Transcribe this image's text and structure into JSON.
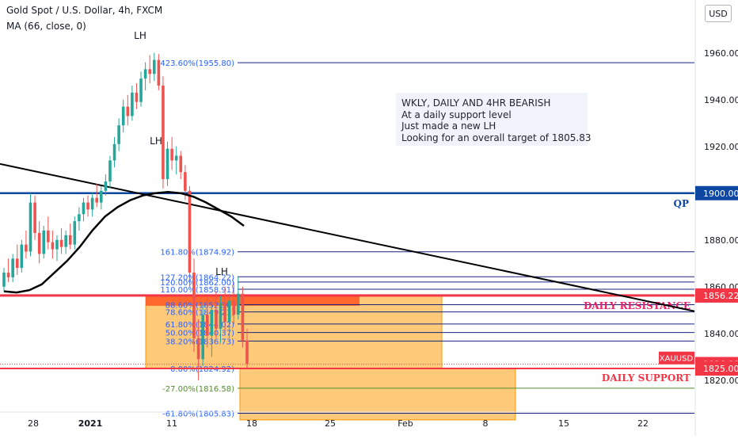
{
  "header": {
    "title": "Gold Spot / U.S. Dollar, 4h, FXCM",
    "indicator": "MA (66, close, 0)",
    "currency_button": "USD"
  },
  "colors": {
    "up_candle": "#26a69a",
    "down_candle": "#ef5350",
    "fib_line": "#1a237e",
    "fib_text": "#2962ff",
    "resistance": "#f23645",
    "support": "#f23645",
    "qp_line": "#0d47a1",
    "zone_fill": "#ffb74d",
    "ma_line": "#000000",
    "trend_line": "#000000",
    "price_tag_blue": "#0d47a1",
    "price_tag_red": "#f23645"
  },
  "note": {
    "lines": [
      "WKLY, DAILY AND 4HR BEARISH",
      "At a daily support level",
      "Just made a new LH",
      "Looking for an overall target of 1805.83"
    ]
  },
  "chart_data": {
    "type": "candlestick",
    "title": "Gold Spot / U.S. Dollar, 4h, FXCM",
    "y_axis": {
      "ticks": [
        1960,
        1940,
        1920,
        1900,
        1880,
        1860,
        1840,
        1820
      ],
      "tick_labels": [
        "1960.00",
        "1940.00",
        "1920.00",
        "1900.00",
        "1880.00",
        "1860.00",
        "1840.00",
        "1820.00"
      ],
      "range": [
        1796,
        1968
      ]
    },
    "x_axis": {
      "tick_labels": [
        "28",
        "2021",
        "11",
        "18",
        "25",
        "Feb",
        "8",
        "15",
        "22"
      ]
    },
    "price_tags": [
      {
        "label": "1900.00",
        "value": 1900.0,
        "kind": "blue"
      },
      {
        "label": "1856.22",
        "value": 1856.22,
        "kind": "red"
      },
      {
        "label": "XAUUSD",
        "value": 1829.5,
        "kind": "red-symbol"
      },
      {
        "label": "1826.88",
        "value": 1826.88,
        "kind": "red"
      },
      {
        "label": "1825.00",
        "value": 1825.0,
        "kind": "red"
      }
    ],
    "horizontal_levels": [
      {
        "label": "QP",
        "value": 1900.0
      },
      {
        "label": "DAILY RESISTANCE",
        "value": 1856.22
      },
      {
        "label": "DAILY SUPPORT",
        "value": 1825.0
      }
    ],
    "fib_levels": [
      {
        "label": "423.60%(1955.80)",
        "value": 1955.8
      },
      {
        "label": "161.80%(1874.92)",
        "value": 1874.92
      },
      {
        "label": "127.20%(1864.22)",
        "value": 1864.22
      },
      {
        "label": "120.00%(1862.00)",
        "value": 1862.0
      },
      {
        "label": "110.00%(1858.91)",
        "value": 1858.91
      },
      {
        "label": "88.60%(1852.30)",
        "value": 1852.3
      },
      {
        "label": "78.60%(1849.21)",
        "value": 1849.21
      },
      {
        "label": "61.80%(1844.02)",
        "value": 1844.02
      },
      {
        "label": "50.00%(1840.37)",
        "value": 1840.37
      },
      {
        "label": "38.20%(1836.73)",
        "value": 1836.73
      },
      {
        "label": "0.00%(1824.92)",
        "value": 1824.92
      },
      {
        "label": "-27.00%(1816.58)",
        "value": 1816.58
      },
      {
        "label": "-61.80%(1805.83)",
        "value": 1805.83
      }
    ],
    "annotations": [
      {
        "text": "LH",
        "x": 0.0,
        "y": 1966.0
      },
      {
        "text": "LH",
        "x": 0.0,
        "y": 1921.0
      },
      {
        "text": "LH",
        "x": 0.0,
        "y": 1865.0
      }
    ],
    "zones": [
      {
        "kind": "resistance-zone",
        "top": 1856.22,
        "bottom": 1825.0
      },
      {
        "kind": "projection-zone",
        "top": 1825.0,
        "bottom": 1803.0
      }
    ],
    "moving_average": {
      "name": "MA (66, close, 0)",
      "points": [
        [
          0,
          1858
        ],
        [
          10,
          1857.5
        ],
        [
          20,
          1858.5
        ],
        [
          30,
          1861
        ],
        [
          40,
          1866
        ],
        [
          50,
          1871
        ],
        [
          60,
          1877
        ],
        [
          70,
          1884
        ],
        [
          80,
          1890
        ],
        [
          90,
          1894
        ],
        [
          100,
          1897
        ],
        [
          110,
          1899
        ],
        [
          120,
          1900
        ],
        [
          130,
          1900.5
        ],
        [
          140,
          1900
        ],
        [
          150,
          1898.5
        ],
        [
          160,
          1896
        ],
        [
          170,
          1893
        ],
        [
          180,
          1890
        ],
        [
          190,
          1886
        ]
      ]
    },
    "trend_line": {
      "start": 1912.5,
      "end": 1849.5
    },
    "candles": [
      {
        "o": 1860,
        "h": 1868,
        "l": 1858,
        "c": 1866
      },
      {
        "o": 1866,
        "h": 1872,
        "l": 1862,
        "c": 1864
      },
      {
        "o": 1864,
        "h": 1874,
        "l": 1862,
        "c": 1872
      },
      {
        "o": 1872,
        "h": 1878,
        "l": 1865,
        "c": 1868
      },
      {
        "o": 1868,
        "h": 1880,
        "l": 1866,
        "c": 1878
      },
      {
        "o": 1878,
        "h": 1884,
        "l": 1872,
        "c": 1875
      },
      {
        "o": 1875,
        "h": 1900,
        "l": 1873,
        "c": 1896
      },
      {
        "o": 1896,
        "h": 1899,
        "l": 1880,
        "c": 1883
      },
      {
        "o": 1883,
        "h": 1888,
        "l": 1870,
        "c": 1874
      },
      {
        "o": 1874,
        "h": 1886,
        "l": 1872,
        "c": 1884
      },
      {
        "o": 1884,
        "h": 1890,
        "l": 1876,
        "c": 1879
      },
      {
        "o": 1879,
        "h": 1884,
        "l": 1872,
        "c": 1876
      },
      {
        "o": 1876,
        "h": 1882,
        "l": 1871,
        "c": 1880
      },
      {
        "o": 1880,
        "h": 1885,
        "l": 1874,
        "c": 1877
      },
      {
        "o": 1877,
        "h": 1884,
        "l": 1874,
        "c": 1882
      },
      {
        "o": 1882,
        "h": 1887,
        "l": 1876,
        "c": 1878
      },
      {
        "o": 1878,
        "h": 1890,
        "l": 1876,
        "c": 1888
      },
      {
        "o": 1888,
        "h": 1894,
        "l": 1884,
        "c": 1891
      },
      {
        "o": 1891,
        "h": 1898,
        "l": 1888,
        "c": 1896
      },
      {
        "o": 1896,
        "h": 1899,
        "l": 1890,
        "c": 1893
      },
      {
        "o": 1893,
        "h": 1900,
        "l": 1890,
        "c": 1898
      },
      {
        "o": 1898,
        "h": 1904,
        "l": 1894,
        "c": 1896
      },
      {
        "o": 1896,
        "h": 1903,
        "l": 1893,
        "c": 1901
      },
      {
        "o": 1901,
        "h": 1908,
        "l": 1899,
        "c": 1905
      },
      {
        "o": 1905,
        "h": 1916,
        "l": 1902,
        "c": 1914
      },
      {
        "o": 1914,
        "h": 1924,
        "l": 1911,
        "c": 1921
      },
      {
        "o": 1921,
        "h": 1932,
        "l": 1918,
        "c": 1929
      },
      {
        "o": 1929,
        "h": 1940,
        "l": 1926,
        "c": 1937
      },
      {
        "o": 1937,
        "h": 1942,
        "l": 1929,
        "c": 1933
      },
      {
        "o": 1933,
        "h": 1946,
        "l": 1931,
        "c": 1943
      },
      {
        "o": 1943,
        "h": 1947,
        "l": 1936,
        "c": 1939
      },
      {
        "o": 1939,
        "h": 1952,
        "l": 1937,
        "c": 1949
      },
      {
        "o": 1949,
        "h": 1956,
        "l": 1944,
        "c": 1953
      },
      {
        "o": 1953,
        "h": 1959,
        "l": 1947,
        "c": 1951
      },
      {
        "o": 1951,
        "h": 1960,
        "l": 1948,
        "c": 1957
      },
      {
        "o": 1957,
        "h": 1959.5,
        "l": 1944,
        "c": 1946
      },
      {
        "o": 1946,
        "h": 1950,
        "l": 1902,
        "c": 1906
      },
      {
        "o": 1906,
        "h": 1922,
        "l": 1903,
        "c": 1919
      },
      {
        "o": 1919,
        "h": 1924,
        "l": 1910,
        "c": 1914
      },
      {
        "o": 1914,
        "h": 1920,
        "l": 1908,
        "c": 1916
      },
      {
        "o": 1916,
        "h": 1918,
        "l": 1906,
        "c": 1909
      },
      {
        "o": 1909,
        "h": 1912,
        "l": 1897,
        "c": 1901
      },
      {
        "o": 1901,
        "h": 1903,
        "l": 1860,
        "c": 1866
      },
      {
        "o": 1866,
        "h": 1872,
        "l": 1832,
        "c": 1838
      },
      {
        "o": 1838,
        "h": 1846,
        "l": 1820,
        "c": 1829
      },
      {
        "o": 1829,
        "h": 1852,
        "l": 1826,
        "c": 1848
      },
      {
        "o": 1848,
        "h": 1856,
        "l": 1834,
        "c": 1839
      },
      {
        "o": 1839,
        "h": 1852,
        "l": 1830,
        "c": 1850
      },
      {
        "o": 1850,
        "h": 1858,
        "l": 1838,
        "c": 1842
      },
      {
        "o": 1842,
        "h": 1856,
        "l": 1836,
        "c": 1853
      },
      {
        "o": 1853,
        "h": 1860,
        "l": 1841,
        "c": 1845
      },
      {
        "o": 1845,
        "h": 1857,
        "l": 1838,
        "c": 1854
      },
      {
        "o": 1854,
        "h": 1862,
        "l": 1844,
        "c": 1848
      },
      {
        "o": 1848,
        "h": 1864.2,
        "l": 1846,
        "c": 1857
      },
      {
        "o": 1857,
        "h": 1860,
        "l": 1834,
        "c": 1837
      },
      {
        "o": 1837,
        "h": 1842,
        "l": 1824.5,
        "c": 1827
      }
    ]
  }
}
